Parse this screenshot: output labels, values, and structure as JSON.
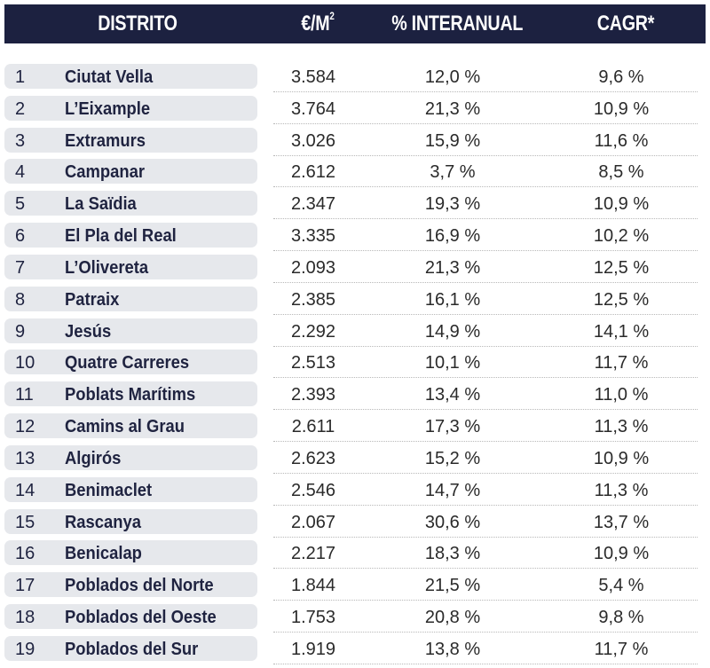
{
  "header": {
    "distrito": "DISTRITO",
    "price": "€/M",
    "price_sup": "2",
    "interanual": "% INTERANUAL",
    "cagr": "CAGR*"
  },
  "colors": {
    "header_bg": "#1c2140",
    "row_pill": "#e6e8ec",
    "text": "#1f2340"
  },
  "rows": [
    {
      "n": "1",
      "name": "Ciutat Vella",
      "price": "3.584",
      "inter": "12,0 %",
      "cagr": "9,6 %"
    },
    {
      "n": "2",
      "name": "L’Eixample",
      "price": "3.764",
      "inter": "21,3 %",
      "cagr": "10,9 %"
    },
    {
      "n": "3",
      "name": "Extramurs",
      "price": "3.026",
      "inter": "15,9 %",
      "cagr": "11,6 %"
    },
    {
      "n": "4",
      "name": "Campanar",
      "price": "2.612",
      "inter": "3,7 %",
      "cagr": "8,5 %"
    },
    {
      "n": "5",
      "name": "La Saïdia",
      "price": "2.347",
      "inter": "19,3 %",
      "cagr": "10,9 %"
    },
    {
      "n": "6",
      "name": "El Pla del Real",
      "price": "3.335",
      "inter": "16,9 %",
      "cagr": "10,2 %"
    },
    {
      "n": "7",
      "name": "L’Olivereta",
      "price": "2.093",
      "inter": "21,3 %",
      "cagr": "12,5 %"
    },
    {
      "n": "8",
      "name": "Patraix",
      "price": "2.385",
      "inter": "16,1 %",
      "cagr": "12,5 %"
    },
    {
      "n": "9",
      "name": "Jesús",
      "price": "2.292",
      "inter": "14,9 %",
      "cagr": "14,1 %"
    },
    {
      "n": "10",
      "name": "Quatre Carreres",
      "price": "2.513",
      "inter": "10,1 %",
      "cagr": "11,7 %"
    },
    {
      "n": "11",
      "name": "Poblats Marítims",
      "price": "2.393",
      "inter": "13,4 %",
      "cagr": "11,0 %"
    },
    {
      "n": "12",
      "name": "Camins al Grau",
      "price": "2.611",
      "inter": "17,3 %",
      "cagr": "11,3 %"
    },
    {
      "n": "13",
      "name": "Algirós",
      "price": "2.623",
      "inter": "15,2 %",
      "cagr": "10,9 %"
    },
    {
      "n": "14",
      "name": "Benimaclet",
      "price": "2.546",
      "inter": "14,7 %",
      "cagr": "11,3 %"
    },
    {
      "n": "15",
      "name": "Rascanya",
      "price": "2.067",
      "inter": "30,6 %",
      "cagr": "13,7 %"
    },
    {
      "n": "16",
      "name": "Benicalap",
      "price": "2.217",
      "inter": "18,3 %",
      "cagr": "10,9 %"
    },
    {
      "n": "17",
      "name": "Poblados del Norte",
      "price": "1.844",
      "inter": "21,5 %",
      "cagr": "5,4 %"
    },
    {
      "n": "18",
      "name": "Poblados del Oeste",
      "price": "1.753",
      "inter": "20,8 %",
      "cagr": "9,8 %"
    },
    {
      "n": "19",
      "name": "Poblados del Sur",
      "price": "1.919",
      "inter": "13,8 %",
      "cagr": "11,7 %"
    }
  ]
}
